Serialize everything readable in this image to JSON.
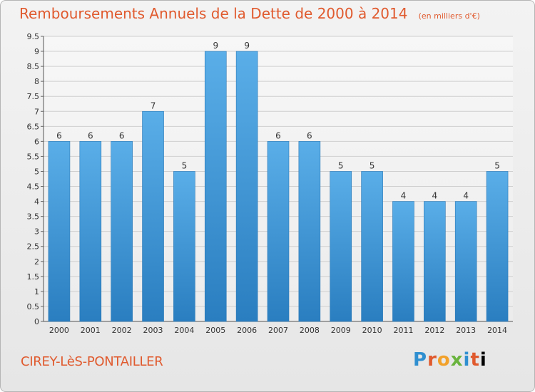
{
  "header": {
    "title": "Remboursements Annuels de la Dette de 2000 à 2014",
    "unit": "(en milliers d'€)"
  },
  "footer": {
    "city": "CIREY-LèS-PONTAILLER",
    "logo_letters": [
      "P",
      "r",
      "o",
      "x",
      "i",
      "t",
      "i"
    ]
  },
  "colors": {
    "title": "#e05a2e",
    "bar_top": "#5aaee8",
    "bar_bottom": "#2a7ec0",
    "grid": "#cfcfcf",
    "axis_text": "#333333"
  },
  "chart_data": {
    "type": "bar",
    "categories": [
      "2000",
      "2001",
      "2002",
      "2003",
      "2004",
      "2005",
      "2006",
      "2007",
      "2008",
      "2009",
      "2010",
      "2011",
      "2012",
      "2013",
      "2014"
    ],
    "values": [
      6,
      6,
      6,
      7,
      5,
      9,
      9,
      6,
      6,
      5,
      5,
      4,
      4,
      4,
      5
    ],
    "value_labels": [
      "6",
      "6",
      "6",
      "7",
      "5",
      "9",
      "9",
      "6",
      "6",
      "5",
      "5",
      "4",
      "4",
      "4",
      "5"
    ],
    "yticks": [
      0,
      0.5,
      1,
      1.5,
      2,
      2.5,
      3,
      3.5,
      4,
      4.5,
      5,
      5.5,
      6,
      6.5,
      7,
      7.5,
      8,
      8.5,
      9,
      9.5
    ],
    "ytick_labels": [
      "0",
      "0.5",
      "1",
      "1.5",
      "2",
      "2.5",
      "3",
      "3.5",
      "4",
      "4.5",
      "5",
      "5.5",
      "6",
      "6.5",
      "7",
      "7.5",
      "8",
      "8.5",
      "9",
      "9.5"
    ],
    "ylim": [
      0,
      9.5
    ],
    "grid": true,
    "xlabel": "",
    "ylabel": ""
  }
}
